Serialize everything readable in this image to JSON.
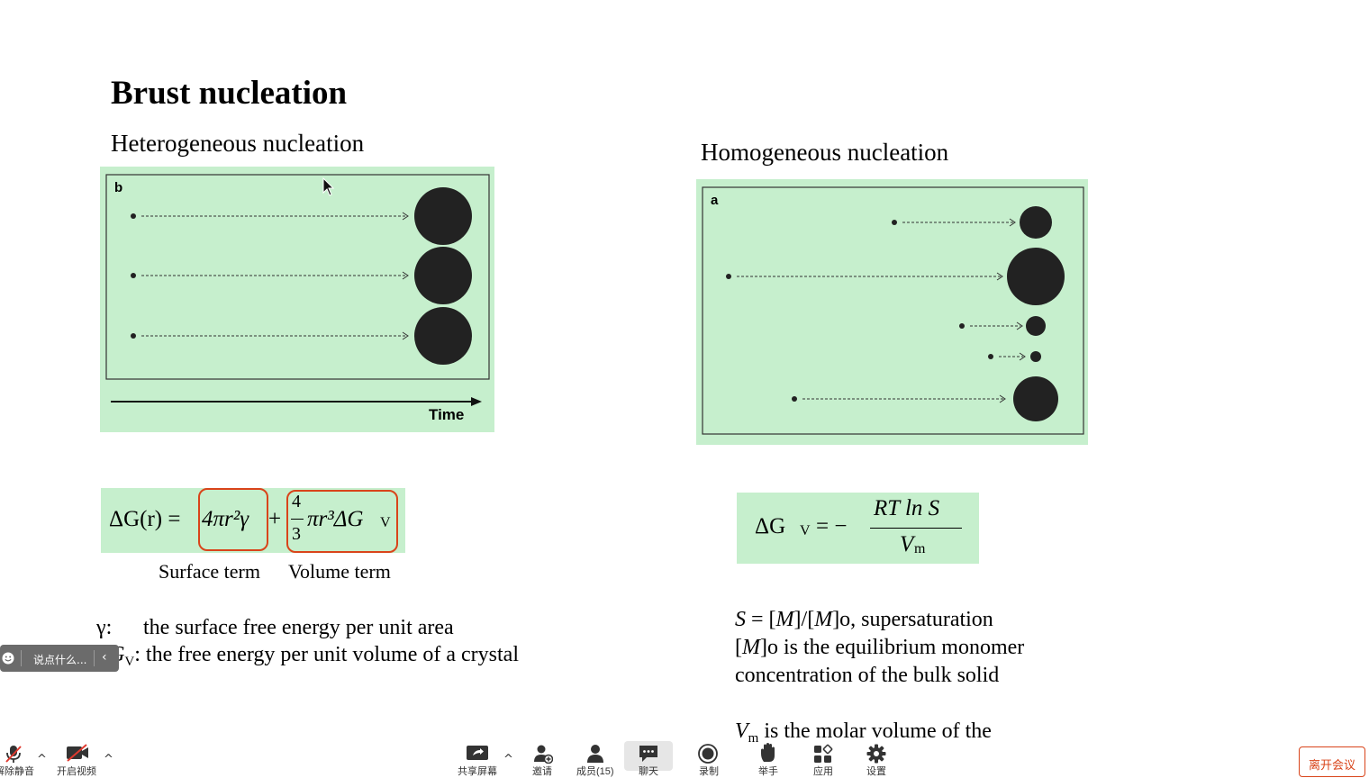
{
  "slide": {
    "title": "Brust nucleation",
    "heterogeneous_heading": "Heterogeneous nucleation",
    "homogeneous_heading": "Homogeneous nucleation",
    "figure_b_label": "b",
    "figure_a_label": "a",
    "time_label": "Time",
    "equation1": {
      "lhs": "ΔG(r) =",
      "surface_term": "4πr²γ",
      "plus": "+",
      "frac_num": "4",
      "frac_den": "3",
      "volume_term": "πr³ΔG",
      "volume_sub": "V"
    },
    "surface_caption": "Surface term",
    "volume_caption": "Volume term",
    "equation2": {
      "lhs": "ΔG",
      "lhs_sub": "V",
      "equals": "= −",
      "numerator": "RT ln S",
      "denominator": "V",
      "denominator_sub": "m"
    },
    "gamma_symbol": "γ:",
    "gamma_desc": "the surface free energy per unit area",
    "dgv_symbol": "ΔG",
    "dgv_sub": "V",
    "dgv_desc": ": the free energy per unit volume of a crystal",
    "s_def_prefix": "S",
    "s_def_middle": " = [",
    "s_def_m1": "M",
    "s_def_mid2": "]/[",
    "s_def_m2": "M",
    "s_def_rest": "]o, supersaturation",
    "mo_prefix": "[",
    "mo_m": "M",
    "mo_rest": "]o is the equilibrium monomer",
    "mo_line2": "concentration of the bulk solid",
    "vm_symbol": "V",
    "vm_sub": "m",
    "vm_rest": " is the molar volume of the"
  },
  "chat_input": {
    "placeholder": "说点什么..."
  },
  "toolbar": {
    "items": [
      {
        "label": "解除静音",
        "icon": "microphone-muted-icon"
      },
      {
        "label": "开启视频",
        "icon": "video-off-icon"
      },
      {
        "label": "共享屏幕",
        "icon": "share-screen-icon"
      },
      {
        "label": "邀请",
        "icon": "invite-icon"
      },
      {
        "label": "成员(15)",
        "icon": "members-icon"
      },
      {
        "label": "聊天",
        "icon": "chat-icon"
      },
      {
        "label": "录制",
        "icon": "record-icon"
      },
      {
        "label": "举手",
        "icon": "raise-hand-icon"
      },
      {
        "label": "应用",
        "icon": "apps-icon"
      },
      {
        "label": "设置",
        "icon": "settings-icon"
      }
    ],
    "leave_label": "离开会议"
  },
  "colors": {
    "figure_bg": "#c6efcd",
    "accent_red": "#d9441a",
    "particle": "#222222"
  }
}
